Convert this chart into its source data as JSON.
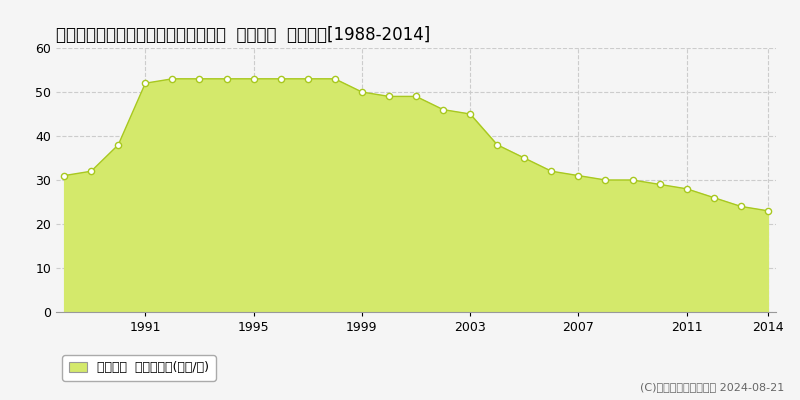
{
  "title": "鳥取県鳥取市安長字中畦２９５番２外  地価公示  地価推移[1988-2014]",
  "years": [
    1988,
    1989,
    1990,
    1991,
    1992,
    1993,
    1994,
    1995,
    1996,
    1997,
    1998,
    1999,
    2000,
    2001,
    2002,
    2003,
    2004,
    2005,
    2006,
    2007,
    2008,
    2009,
    2010,
    2011,
    2012,
    2013,
    2014
  ],
  "values": [
    31,
    32,
    38,
    52,
    53,
    53,
    53,
    53,
    53,
    53,
    53,
    50,
    49,
    49,
    46,
    45,
    38,
    35,
    32,
    31,
    30,
    30,
    29,
    28,
    26,
    24,
    23
  ],
  "fill_color": "#d4e96b",
  "line_color": "#a8c820",
  "marker_facecolor": "#ffffff",
  "marker_edgecolor": "#a8c820",
  "background_color": "#f5f5f5",
  "plot_bg_color": "#f5f5f5",
  "grid_color": "#cccccc",
  "ylim": [
    0,
    60
  ],
  "yticks": [
    0,
    10,
    20,
    30,
    40,
    50,
    60
  ],
  "xtick_positions": [
    1991,
    1995,
    1999,
    2003,
    2007,
    2011,
    2014
  ],
  "legend_label": "地価公示  平均坪単価(万円/坪)",
  "copyright_text": "(C)土地価格ドットコム 2024-08-21",
  "title_fontsize": 12,
  "tick_fontsize": 9,
  "legend_fontsize": 9,
  "copyright_fontsize": 8
}
